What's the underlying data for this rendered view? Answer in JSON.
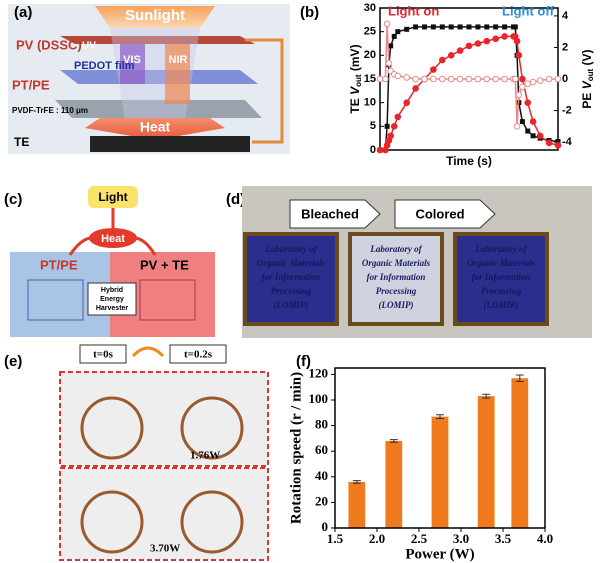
{
  "panels": {
    "a": {
      "label": "(a)",
      "sunlight": "Sunlight",
      "pv": "PV (DSSC)",
      "uv": "UV",
      "vis": "VIS",
      "nir": "NIR",
      "pedot": "PEDOT film",
      "ptpe": "PT/PE",
      "pvdf": "PVDF-TrFE : 110 μm",
      "heat": "Heat",
      "te": "TE"
    },
    "b": {
      "label": "(b)"
    },
    "c": {
      "label": "(c)",
      "light": "Light",
      "heat": "Heat",
      "ptpe": "PT/PE",
      "pvte": "PV + TE",
      "harvester": [
        "Hybrid",
        "Energy",
        "Harvester"
      ]
    },
    "d": {
      "label": "(d)",
      "bleached": "Bleached",
      "colored": "Colored",
      "slide": [
        "Laboratory of",
        "Organic Materials",
        "for Information",
        "Processing",
        "(LOMIP)"
      ]
    },
    "e": {
      "label": "(e)",
      "t0": "t=0s",
      "t1": "t=0.2s",
      "p1": "1.76W",
      "p2": "3.70W"
    },
    "f": {
      "label": "(f)"
    }
  },
  "chart_data": [
    {
      "type": "line",
      "xlabel": "Time (s)",
      "ylabel": [
        "TE ",
        "V",
        "out",
        " (mV)"
      ],
      "y2label": [
        "PE ",
        "V",
        "out",
        " (V)"
      ],
      "annotations": [
        "Light on",
        "Light off"
      ],
      "x": [
        0,
        3,
        4,
        5,
        6,
        8,
        10,
        15,
        20,
        25,
        30,
        35,
        40,
        45,
        50,
        55,
        60,
        65,
        70,
        75,
        76,
        77,
        78,
        80,
        83,
        86,
        90,
        95,
        100
      ],
      "xlim": [
        0,
        100
      ],
      "ylim": [
        0,
        30
      ],
      "yticks": [
        0,
        5,
        10,
        15,
        20,
        25,
        30
      ],
      "y2lim": [
        -4.5,
        4.5
      ],
      "y2ticks": [
        -4,
        -2,
        0,
        2,
        4
      ],
      "series": [
        {
          "color": "#111111",
          "marker": "square",
          "values": [
            0,
            0,
            5,
            18,
            22,
            24,
            25,
            25.5,
            26,
            26,
            26,
            26,
            26,
            26,
            26,
            26,
            26,
            26,
            26,
            26,
            26,
            20,
            10,
            6,
            4,
            3,
            2.5,
            2,
            1.8
          ]
        },
        {
          "color": "#e8262b",
          "marker": "circle",
          "values": [
            0,
            0,
            1,
            2,
            3,
            5,
            7,
            10,
            13,
            15,
            17,
            19,
            20,
            21,
            22,
            22.5,
            23,
            23.5,
            24,
            24,
            24,
            23,
            20,
            15,
            10,
            6,
            3,
            1.5,
            1
          ]
        },
        {
          "color": "#e88a8a",
          "marker": "open",
          "axis": "y2",
          "values": [
            0,
            0,
            3.5,
            1,
            0.5,
            0.3,
            0.2,
            0.1,
            0,
            0,
            0,
            0,
            0,
            0,
            0,
            0,
            0,
            0,
            0,
            0,
            0,
            -3,
            -1,
            -0.5,
            -0.3,
            -0.2,
            -0.1,
            0,
            0
          ]
        }
      ]
    },
    {
      "type": "bar",
      "xlabel": "Power (W)",
      "ylabel": "Rotation speed (r / min)",
      "color": "#f07a1e",
      "x": [
        1.76,
        2.2,
        2.75,
        3.3,
        3.7
      ],
      "values": [
        36,
        68,
        87,
        103,
        117
      ],
      "errors": [
        1,
        1,
        1.5,
        1.5,
        2.5
      ],
      "xlim": [
        1.5,
        4.0
      ],
      "xticks": [
        1.5,
        {
          "value": 2.0,
          "label": "2.0"
        },
        2.5,
        {
          "value": 3.0,
          "label": "3.0"
        },
        3.5,
        {
          "value": 4.0,
          "label": "4.0"
        }
      ],
      "ylim": [
        0,
        125
      ],
      "yticks": [
        0,
        20,
        40,
        60,
        80,
        100,
        120
      ]
    }
  ]
}
